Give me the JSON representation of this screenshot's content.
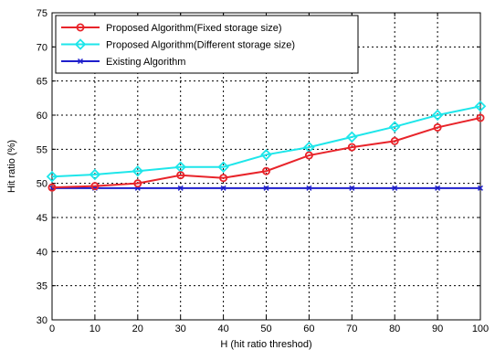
{
  "chart_data": {
    "type": "line",
    "title": "",
    "xlabel": "H (hit ratio threshod)",
    "ylabel": "Hit ratio (%)",
    "x": [
      0,
      10,
      20,
      30,
      40,
      50,
      60,
      70,
      80,
      90,
      100
    ],
    "xlim": [
      0,
      100
    ],
    "ylim": [
      30,
      75
    ],
    "xticks": [
      0,
      10,
      20,
      30,
      40,
      50,
      60,
      70,
      80,
      90,
      100
    ],
    "yticks": [
      30,
      35,
      40,
      45,
      50,
      55,
      60,
      65,
      70,
      75
    ],
    "grid": true,
    "legend_position": "top-left",
    "series": [
      {
        "name": "Proposed Algorithm(Fixed storage size)",
        "color": "#e8242a",
        "marker": "circle",
        "values": [
          49.4,
          49.6,
          50.0,
          51.2,
          50.8,
          51.8,
          54.1,
          55.3,
          56.2,
          58.2,
          59.6
        ]
      },
      {
        "name": "Proposed Algorithm(Different storage size)",
        "color": "#1ee6ea",
        "marker": "diamond",
        "values": [
          51.0,
          51.3,
          51.8,
          52.4,
          52.4,
          54.2,
          55.3,
          56.8,
          58.3,
          60.0,
          61.3
        ]
      },
      {
        "name": "Existing Algorithm",
        "color": "#1f1fcc",
        "marker": "x",
        "values": [
          49.3,
          49.3,
          49.3,
          49.3,
          49.3,
          49.3,
          49.3,
          49.3,
          49.3,
          49.3,
          49.3
        ]
      }
    ]
  }
}
